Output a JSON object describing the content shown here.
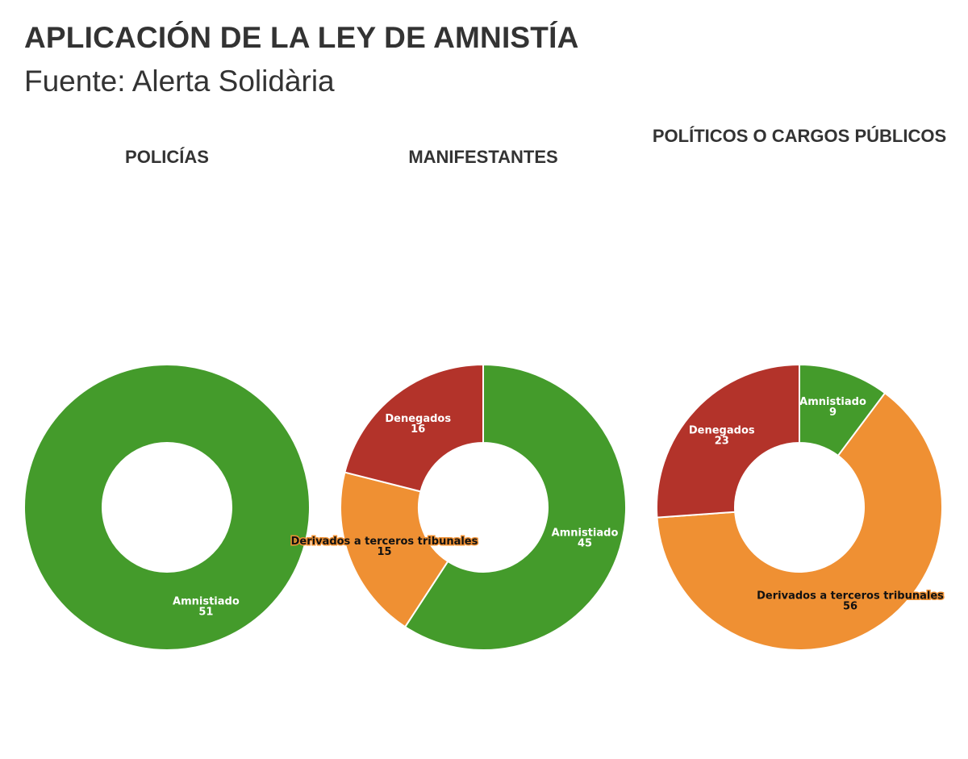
{
  "header": {
    "title": "APLICACIÓN DE LA LEY DE AMNISTÍA",
    "subtitle": "Fuente: Alerta Solidària"
  },
  "colors": {
    "Amnistiado": "#449b2b",
    "Derivados a terceros tribunales": "#ef9033",
    "Denegados": "#b3332a"
  },
  "chart_data": [
    {
      "type": "pie",
      "title": "POLICÍAS",
      "slices": [
        {
          "label": "Amnistiado",
          "value": 51
        }
      ]
    },
    {
      "type": "pie",
      "title": "MANIFESTANTES",
      "slices": [
        {
          "label": "Amnistiado",
          "value": 45
        },
        {
          "label": "Derivados a terceros tribunales",
          "value": 15
        },
        {
          "label": "Denegados",
          "value": 16
        }
      ]
    },
    {
      "type": "pie",
      "title": "POLÍTICOS O CARGOS PÚBLICOS",
      "slices": [
        {
          "label": "Amnistiado",
          "value": 9
        },
        {
          "label": "Derivados a terceros tribunales",
          "value": 56
        },
        {
          "label": "Denegados",
          "value": 23
        }
      ]
    }
  ]
}
